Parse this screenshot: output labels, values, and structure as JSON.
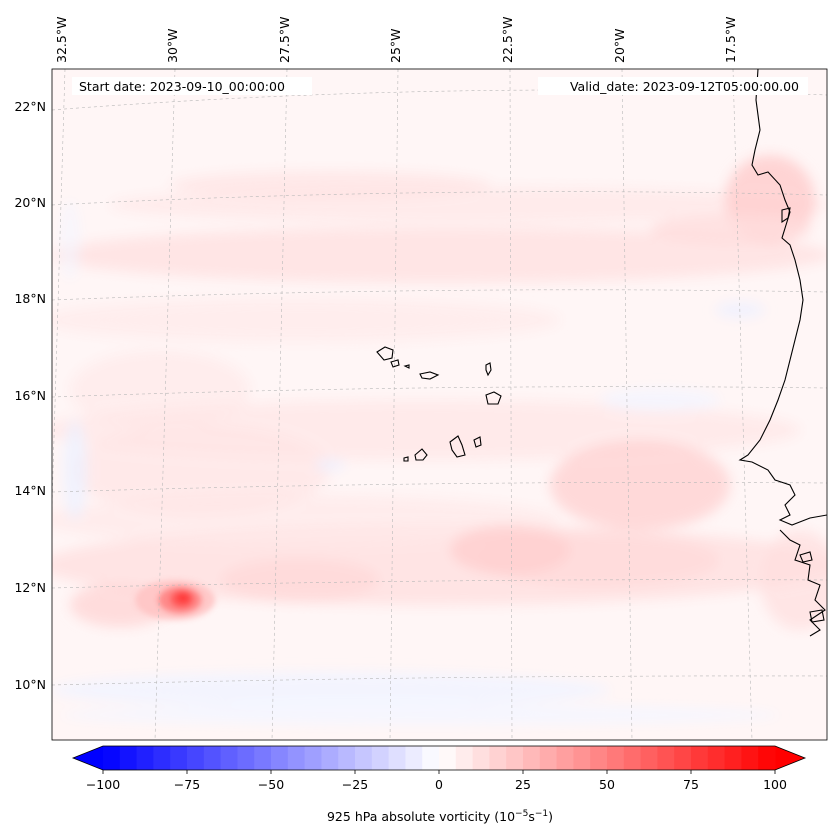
{
  "map": {
    "header": {
      "start_date": "Start date: 2023-09-10_00:00:00",
      "valid_date": "Valid_date: 2023-09-12T05:00:00.00"
    },
    "lon_labels": [
      "32.5°W",
      "30°W",
      "27.5°W",
      "25°W",
      "22.5°W",
      "20°W",
      "17.5°W"
    ],
    "lat_labels": [
      "22°N",
      "20°N",
      "18°N",
      "16°N",
      "14°N",
      "12°N",
      "10°N"
    ],
    "colorbar": {
      "label": "925 hPa absolute vorticity (10",
      "label_exp1": "−5",
      "label_mid": "s",
      "label_exp2": "−1",
      "label_end": ")",
      "ticks": [
        "−100",
        "−75",
        "−50",
        "−25",
        "0",
        "25",
        "50",
        "75",
        "100"
      ],
      "range": [
        -100,
        100
      ],
      "step": 5,
      "colormap": "blue-white-red",
      "low_color": "#0000ff",
      "high_color": "#ff0000"
    }
  }
}
